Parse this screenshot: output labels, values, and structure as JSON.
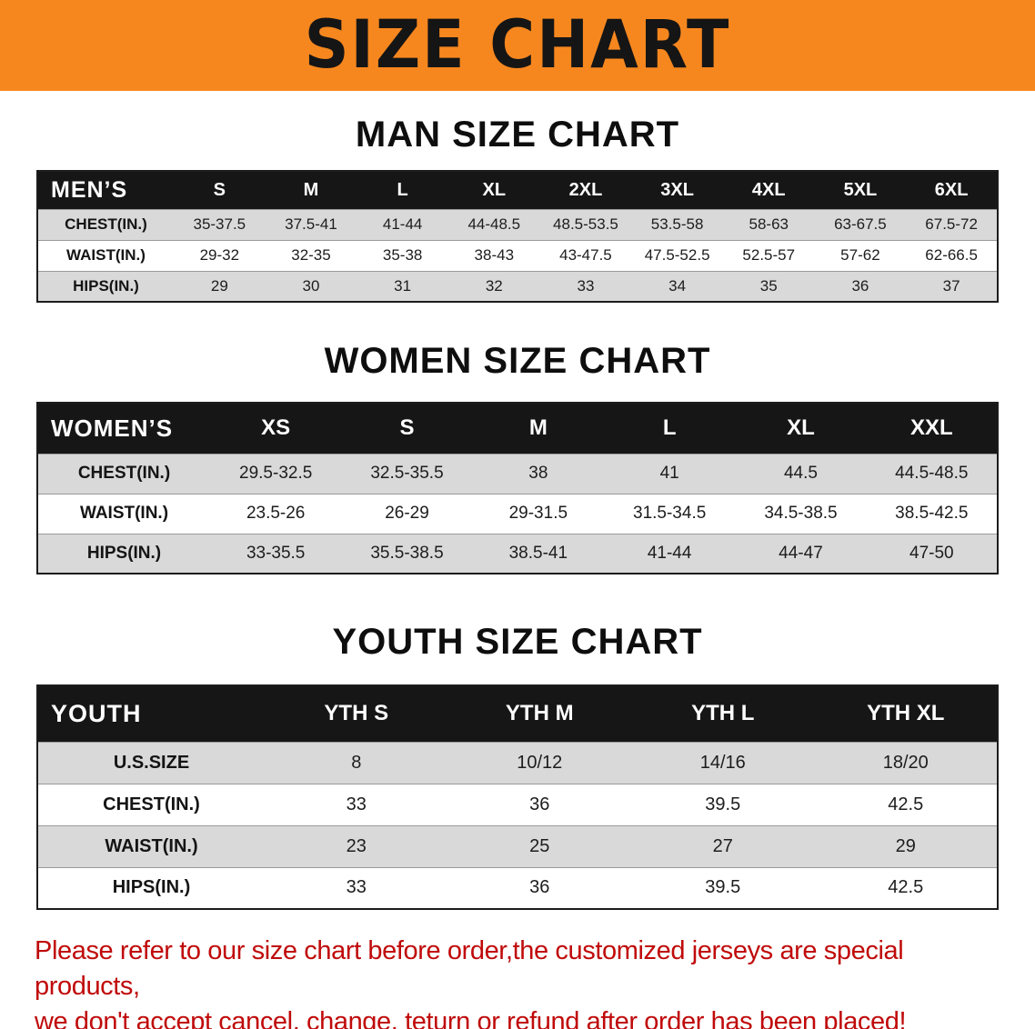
{
  "banner": {
    "title": "SIZE CHART"
  },
  "sections": {
    "men": {
      "heading": "MAN SIZE CHART",
      "table": {
        "header": [
          "MEN’S",
          "S",
          "M",
          "L",
          "XL",
          "2XL",
          "3XL",
          "4XL",
          "5XL",
          "6XL"
        ],
        "rows": [
          [
            "CHEST(IN.)",
            "35-37.5",
            "37.5-41",
            "41-44",
            "44-48.5",
            "48.5-53.5",
            "53.5-58",
            "58-63",
            "63-67.5",
            "67.5-72"
          ],
          [
            "WAIST(IN.)",
            "29-32",
            "32-35",
            "35-38",
            "38-43",
            "43-47.5",
            "47.5-52.5",
            "52.5-57",
            "57-62",
            "62-66.5"
          ],
          [
            "HIPS(IN.)",
            "29",
            "30",
            "31",
            "32",
            "33",
            "34",
            "35",
            "36",
            "37"
          ]
        ]
      }
    },
    "women": {
      "heading": "WOMEN SIZE CHART",
      "table": {
        "header": [
          "WOMEN’S",
          "XS",
          "S",
          "M",
          "L",
          "XL",
          "XXL"
        ],
        "rows": [
          [
            "CHEST(IN.)",
            "29.5-32.5",
            "32.5-35.5",
            "38",
            "41",
            "44.5",
            "44.5-48.5"
          ],
          [
            "WAIST(IN.)",
            "23.5-26",
            "26-29",
            "29-31.5",
            "31.5-34.5",
            "34.5-38.5",
            "38.5-42.5"
          ],
          [
            "HIPS(IN.)",
            "33-35.5",
            "35.5-38.5",
            "38.5-41",
            "41-44",
            "44-47",
            "47-50"
          ]
        ]
      }
    },
    "youth": {
      "heading": "YOUTH SIZE CHART",
      "table": {
        "header": [
          "YOUTH",
          "YTH S",
          "YTH M",
          "YTH L",
          "YTH XL"
        ],
        "rows": [
          [
            "U.S.SIZE",
            "8",
            "10/12",
            "14/16",
            "18/20"
          ],
          [
            "CHEST(IN.)",
            "33",
            "36",
            "39.5",
            "42.5"
          ],
          [
            "WAIST(IN.)",
            "23",
            "25",
            "27",
            "29"
          ],
          [
            "HIPS(IN.)",
            "33",
            "36",
            "39.5",
            "42.5"
          ]
        ]
      }
    }
  },
  "disclaimer": {
    "line1": "Please refer to our size chart before order,the customized jerseys are special products,",
    "line2": "we don't accept cancel, change, teturn or refund after order has been placed!"
  },
  "colors": {
    "banner_bg": "#F6871F",
    "table_header_bar": "#161616",
    "row_stripe": "#D9D9D9",
    "disclaimer_text": "#C00A0A"
  }
}
